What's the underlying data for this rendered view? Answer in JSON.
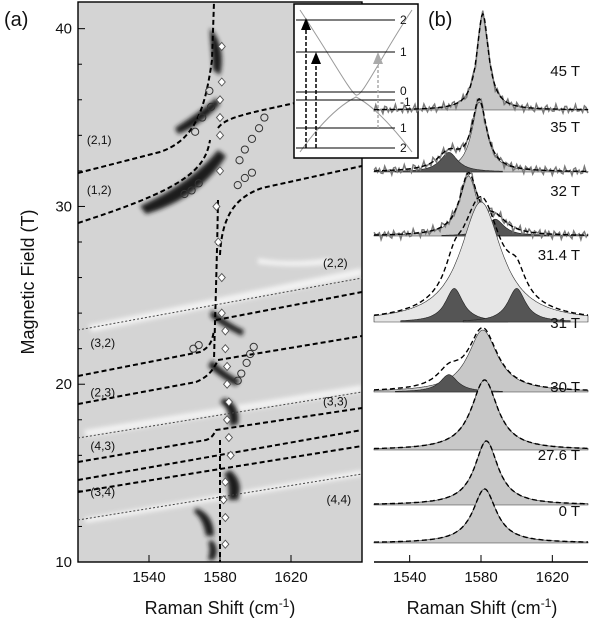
{
  "panel_a": {
    "label": "(a)",
    "ylabel": "Magnetic Field (T)",
    "xlabel": "Raman Shift (cm",
    "xlabel_sup": "-1",
    "xlabel_close": ")",
    "xticks": [
      "1540",
      "1580",
      "1620"
    ],
    "yticks": [
      "10",
      "20",
      "30",
      "40"
    ],
    "xlim": [
      1500,
      1660
    ],
    "ylim": [
      10,
      41.5
    ],
    "transition_labels": [
      {
        "text": "(2,1)",
        "x": 1505,
        "y": 33.5
      },
      {
        "text": "(1,2)",
        "x": 1505,
        "y": 30.7
      },
      {
        "text": "(2,2)",
        "x": 1638,
        "y": 26.6
      },
      {
        "text": "(3,2)",
        "x": 1507,
        "y": 22.1
      },
      {
        "text": "(2,3)",
        "x": 1507,
        "y": 19.3
      },
      {
        "text": "(3,3)",
        "x": 1638,
        "y": 18.8
      },
      {
        "text": "(4,3)",
        "x": 1507,
        "y": 16.3
      },
      {
        "text": "(3,4)",
        "x": 1507,
        "y": 13.7
      },
      {
        "text": "(4,4)",
        "x": 1640,
        "y": 13.3
      }
    ]
  },
  "inset": {
    "level_labels": [
      "2",
      "1",
      "0",
      "-1",
      "1",
      "2"
    ]
  },
  "panel_b": {
    "label": "(b)",
    "xlabel": "Raman Shift (cm",
    "xlabel_sup": "-1",
    "xlabel_close": ")",
    "xticks": [
      "1540",
      "1580",
      "1620"
    ],
    "xlim": [
      1520,
      1640
    ],
    "spectra_labels": [
      "45 T",
      "35 T",
      "32 T",
      "31.4 T",
      "31 T",
      "30 T",
      "27.6 T",
      "0 T"
    ]
  },
  "colors": {
    "map_background": "#d4d4d4",
    "dark_feature": "#1e1e1e",
    "fill_light": "#c8c8c8",
    "fill_dark": "#555555",
    "noisy_trace": "#7a7a7a"
  },
  "chart_data": [
    {
      "type": "heatmap",
      "panel": "(a)",
      "xlabel": "Raman Shift (cm-1)",
      "ylabel": "Magnetic Field (T)",
      "xlim": [
        1500,
        1660
      ],
      "ylim": [
        10,
        41.5
      ],
      "grid": false,
      "series": [
        {
          "name": "G-band peak position (diamonds)",
          "points": [
            [
              1583,
              11
            ],
            [
              1583,
              12.5
            ],
            [
              1582,
              13.5
            ],
            [
              1583,
              14.5
            ],
            [
              1586,
              16
            ],
            [
              1585,
              17
            ],
            [
              1584,
              18
            ],
            [
              1585,
              19
            ],
            [
              1584,
              20
            ],
            [
              1584,
              21
            ],
            [
              1583,
              22
            ],
            [
              1583,
              23
            ],
            [
              1581,
              24
            ],
            [
              1581,
              26
            ],
            [
              1579,
              28
            ],
            [
              1578,
              30
            ],
            [
              1580,
              32
            ],
            [
              1580,
              34
            ],
            [
              1580,
              35
            ],
            [
              1580,
              36
            ],
            [
              1581,
              37
            ],
            [
              1581,
              39
            ]
          ]
        },
        {
          "name": "split-peak positions (circles)",
          "points": [
            [
              1565,
              22
            ],
            [
              1568,
              22.2
            ],
            [
              1590,
              20.2
            ],
            [
              1592,
              20.6
            ],
            [
              1595,
              21.2
            ],
            [
              1597,
              21.7
            ],
            [
              1599,
              22.1
            ],
            [
              1560,
              30.7
            ],
            [
              1564,
              30.9
            ],
            [
              1568,
              31.3
            ],
            [
              1590,
              31.2
            ],
            [
              1594,
              31.6
            ],
            [
              1598,
              31.9
            ],
            [
              1591,
              32.6
            ],
            [
              1594,
              33.2
            ],
            [
              1598,
              33.8
            ],
            [
              1602,
              34.4
            ],
            [
              1605,
              35
            ],
            [
              1566,
              34.2
            ],
            [
              1570,
              35
            ],
            [
              1575,
              35.6
            ],
            [
              1574,
              36.5
            ]
          ]
        }
      ]
    },
    {
      "type": "line",
      "panel": "(b)",
      "xlabel": "Raman Shift (cm-1)",
      "xlim": [
        1520,
        1640
      ],
      "grid": false,
      "series": [
        {
          "name": "45 T",
          "center": 1581,
          "width": 4
        },
        {
          "name": "35 T",
          "center": 1579,
          "width": 5,
          "side_peak": 1562
        },
        {
          "name": "32 T",
          "center": 1573,
          "width": 6,
          "side_peak": 1588
        },
        {
          "name": "31.4 T",
          "center": 1580,
          "width": 14,
          "side_peaks": [
            1565,
            1600
          ]
        },
        {
          "name": "31 T",
          "center": 1581,
          "width": 10,
          "side_peak": 1562
        },
        {
          "name": "30 T",
          "center": 1582,
          "width": 9
        },
        {
          "name": "27.6 T",
          "center": 1583,
          "width": 8
        },
        {
          "name": "0 T",
          "center": 1582,
          "width": 8
        }
      ]
    }
  ]
}
